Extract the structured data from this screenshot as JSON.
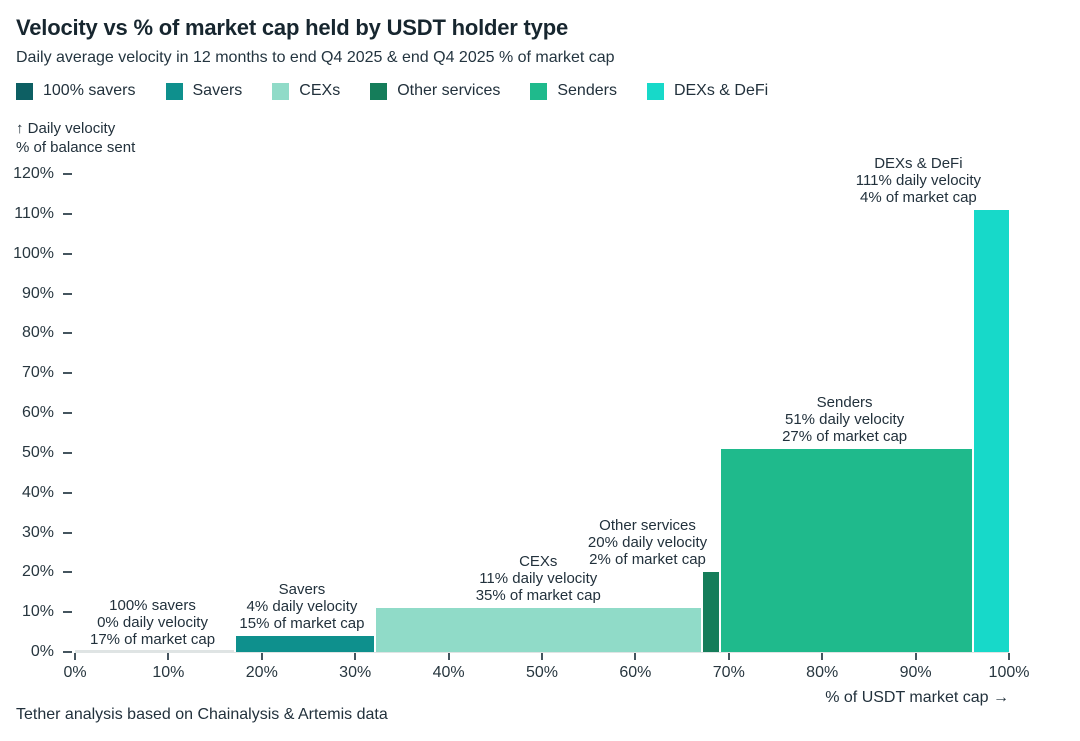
{
  "header": {
    "title": "Velocity vs % of market cap held by USDT holder type",
    "subtitle": "Daily average velocity in 12 months to end Q4 2025 & end Q4 2025 % of market cap"
  },
  "footer": {
    "source": "Tether analysis based on Chainalysis & Artemis data"
  },
  "chart_data": {
    "type": "bar",
    "variant": "variable-width-marimekko",
    "title": "Velocity vs % of market cap held by USDT holder type",
    "grid": false,
    "legend_position": "top",
    "x_axis": {
      "label": "% of USDT market cap →",
      "range": [
        0,
        100
      ],
      "tick_step": 10,
      "ticks": [
        "0%",
        "10%",
        "20%",
        "30%",
        "40%",
        "50%",
        "60%",
        "70%",
        "80%",
        "90%",
        "100%"
      ]
    },
    "y_axis": {
      "label_lines": [
        "↑ Daily velocity",
        "% of balance sent"
      ],
      "range": [
        0,
        120
      ],
      "tick_step": 10,
      "ticks": [
        "0%",
        "10%",
        "20%",
        "30%",
        "40%",
        "50%",
        "60%",
        "70%",
        "80%",
        "90%",
        "100%",
        "110%",
        "120%"
      ]
    },
    "series": [
      {
        "name": "100% savers",
        "daily_velocity_pct": 0,
        "market_cap_pct": 17,
        "x_start_pct": 0,
        "x_end_pct": 17,
        "color": "#0d5f63",
        "annotation_lines": [
          "100% savers",
          "0% daily velocity",
          "17% of market cap"
        ],
        "annotation_anchor": {
          "center_x_pct": 8.3,
          "bottom_y_pct": 0
        }
      },
      {
        "name": "Savers",
        "daily_velocity_pct": 4,
        "market_cap_pct": 15,
        "x_start_pct": 17,
        "x_end_pct": 32,
        "color": "#0e908d",
        "annotation_lines": [
          "Savers",
          "4% daily velocity",
          "15% of market cap"
        ],
        "annotation_anchor": {
          "center_x_pct": 24.3,
          "bottom_y_pct": 4
        }
      },
      {
        "name": "CEXs",
        "daily_velocity_pct": 11,
        "market_cap_pct": 35,
        "x_start_pct": 32,
        "x_end_pct": 67,
        "color": "#90dbc8",
        "annotation_lines": [
          "CEXs",
          "11% daily velocity",
          "35% of market cap"
        ],
        "annotation_anchor": {
          "center_x_pct": 49.6,
          "bottom_y_pct": 11
        }
      },
      {
        "name": "Other services",
        "daily_velocity_pct": 20,
        "market_cap_pct": 2,
        "x_start_pct": 67,
        "x_end_pct": 69,
        "color": "#157d5a",
        "annotation_lines": [
          "Other services",
          "20% daily velocity",
          "2% of market cap"
        ],
        "annotation_anchor": {
          "center_x_pct": 61.3,
          "bottom_y_pct": 20
        }
      },
      {
        "name": "Senders",
        "daily_velocity_pct": 51,
        "market_cap_pct": 27,
        "x_start_pct": 69,
        "x_end_pct": 96,
        "color": "#1fba8c",
        "annotation_lines": [
          "Senders",
          "51% daily velocity",
          "27% of market cap"
        ],
        "annotation_anchor": {
          "center_x_pct": 82.4,
          "bottom_y_pct": 51
        }
      },
      {
        "name": "DEXs & DeFi",
        "daily_velocity_pct": 111,
        "market_cap_pct": 4,
        "x_start_pct": 96,
        "x_end_pct": 100,
        "color": "#17d9c9",
        "annotation_lines": [
          "DEXs & DeFi",
          "111% daily velocity",
          "4% of market cap"
        ],
        "annotation_anchor": {
          "center_x_pct": 90.3,
          "bottom_y_pct": 111
        }
      }
    ]
  }
}
